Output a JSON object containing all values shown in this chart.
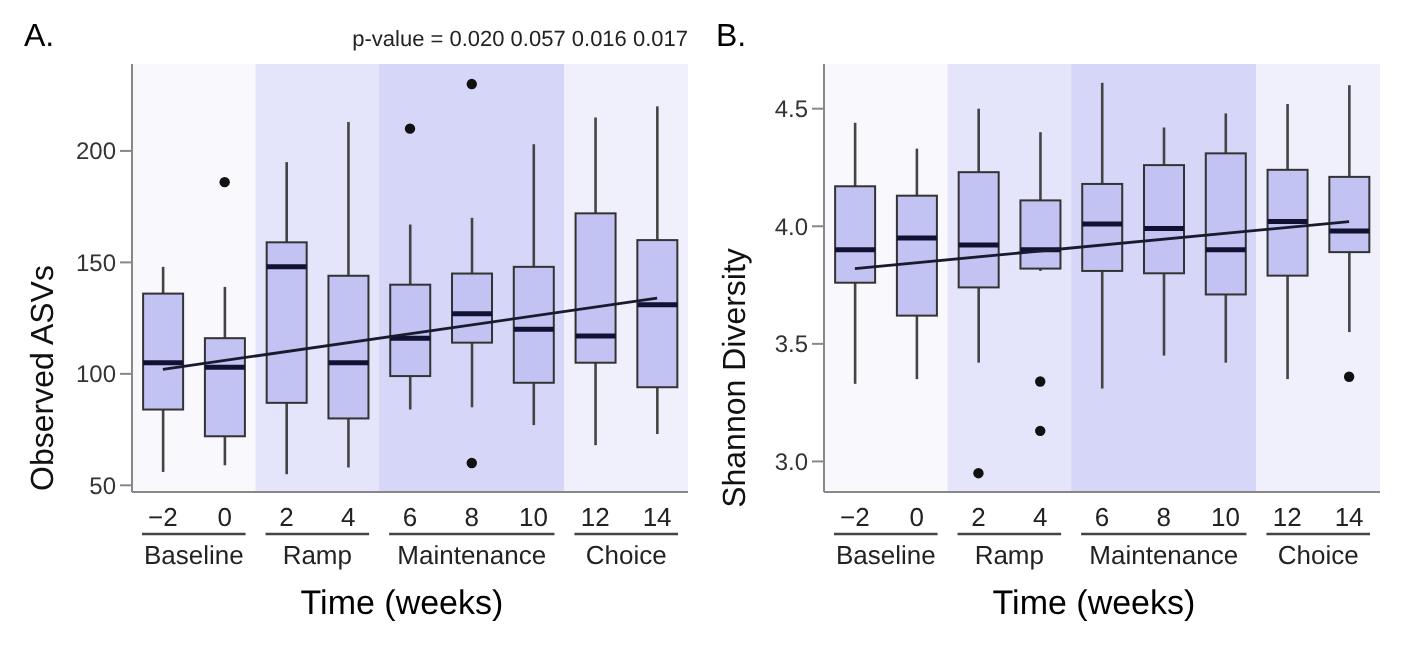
{
  "chart_data": [
    {
      "type": "box",
      "title": "A.",
      "xlabel": "Time (weeks)",
      "ylabel": "Observed ASVs",
      "annotations": [
        "p-value = 0.020 0.057 0.016 0.017"
      ],
      "categories": [
        "−2",
        "0",
        "2",
        "4",
        "6",
        "8",
        "10",
        "12",
        "14"
      ],
      "ylim": [
        47,
        239
      ],
      "yticks": [
        50,
        100,
        150,
        200
      ],
      "legend": false,
      "bands": [
        {
          "axis": "x",
          "from": "−2",
          "to": "0",
          "label": "Baseline",
          "color": "#f8f8fd"
        },
        {
          "axis": "x",
          "from": "2",
          "to": "4",
          "label": "Ramp",
          "color": "#e4e4fb"
        },
        {
          "axis": "x",
          "from": "6",
          "to": "10",
          "label": "Maintenance",
          "color": "#d6d6f8"
        },
        {
          "axis": "x",
          "from": "12",
          "to": "14",
          "label": "Choice",
          "color": "#f0f0fc"
        }
      ],
      "series": [
        {
          "type": "box",
          "color": "#c3c3f3",
          "boxes": [
            {
              "low": 56,
              "q1": 84,
              "median": 105,
              "q3": 136,
              "high": 148
            },
            {
              "low": 59,
              "q1": 72,
              "median": 103,
              "q3": 116,
              "high": 139,
              "outliers": [
                186
              ]
            },
            {
              "low": 55,
              "q1": 87,
              "median": 148,
              "q3": 159,
              "high": 195
            },
            {
              "low": 58,
              "q1": 80,
              "median": 105,
              "q3": 144,
              "high": 213
            },
            {
              "low": 84,
              "q1": 99,
              "median": 116,
              "q3": 140,
              "high": 167,
              "outliers": [
                210
              ]
            },
            {
              "low": 85,
              "q1": 114,
              "median": 127,
              "q3": 145,
              "high": 170,
              "outliers": [
                230,
                60
              ]
            },
            {
              "low": 77,
              "q1": 96,
              "median": 120,
              "q3": 148,
              "high": 203
            },
            {
              "low": 68,
              "q1": 105,
              "median": 117,
              "q3": 172,
              "high": 215
            },
            {
              "low": 73,
              "q1": 94,
              "median": 131,
              "q3": 160,
              "high": 220
            }
          ]
        },
        {
          "type": "line",
          "color": "#1a1a2e",
          "x": [
            "−2",
            "14"
          ],
          "values": [
            102,
            134
          ]
        }
      ]
    },
    {
      "type": "box",
      "title": "B.",
      "xlabel": "Time (weeks)",
      "ylabel": "Shannon Diversity",
      "categories": [
        "−2",
        "0",
        "2",
        "4",
        "6",
        "8",
        "10",
        "12",
        "14"
      ],
      "ylim": [
        2.87,
        4.69
      ],
      "yticks": [
        {
          "value": 3,
          "label": "3.0"
        },
        3.5,
        {
          "value": 4,
          "label": "4.0"
        },
        4.5
      ],
      "legend": false,
      "bands": [
        {
          "axis": "x",
          "from": "−2",
          "to": "0",
          "label": "Baseline",
          "color": "#f8f8fd"
        },
        {
          "axis": "x",
          "from": "2",
          "to": "4",
          "label": "Ramp",
          "color": "#e4e4fb"
        },
        {
          "axis": "x",
          "from": "6",
          "to": "10",
          "label": "Maintenance",
          "color": "#d6d6f8"
        },
        {
          "axis": "x",
          "from": "12",
          "to": "14",
          "label": "Choice",
          "color": "#f0f0fc"
        }
      ],
      "series": [
        {
          "type": "box",
          "color": "#c3c3f3",
          "boxes": [
            {
              "low": 3.33,
              "q1": 3.76,
              "median": 3.9,
              "q3": 4.17,
              "high": 4.44
            },
            {
              "low": 3.35,
              "q1": 3.62,
              "median": 3.95,
              "q3": 4.13,
              "high": 4.33
            },
            {
              "low": 3.42,
              "q1": 3.74,
              "median": 3.92,
              "q3": 4.23,
              "high": 4.5,
              "outliers": [
                2.95
              ]
            },
            {
              "low": 3.81,
              "q1": 3.82,
              "median": 3.9,
              "q3": 4.11,
              "high": 4.4,
              "outliers": [
                3.34,
                3.13
              ]
            },
            {
              "low": 3.31,
              "q1": 3.81,
              "median": 4.01,
              "q3": 4.18,
              "high": 4.61
            },
            {
              "low": 3.45,
              "q1": 3.8,
              "median": 3.99,
              "q3": 4.26,
              "high": 4.42
            },
            {
              "low": 3.42,
              "q1": 3.71,
              "median": 3.9,
              "q3": 4.31,
              "high": 4.48
            },
            {
              "low": 3.35,
              "q1": 3.79,
              "median": 4.02,
              "q3": 4.24,
              "high": 4.52
            },
            {
              "low": 3.55,
              "q1": 3.89,
              "median": 3.98,
              "q3": 4.21,
              "high": 4.6,
              "outliers": [
                3.36
              ]
            }
          ]
        },
        {
          "type": "line",
          "color": "#1a1a2e",
          "x": [
            "−2",
            "14"
          ],
          "values": [
            3.82,
            4.02
          ]
        }
      ]
    }
  ]
}
